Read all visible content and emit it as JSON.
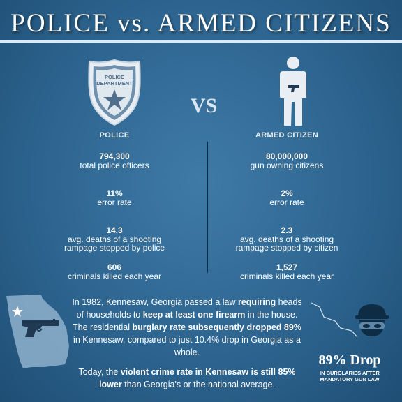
{
  "title": "POLICE vs. ARMED CITIZENS",
  "vs_label": "VS",
  "badge_text": [
    "POLICE",
    "DEPARTMENT"
  ],
  "police": {
    "heading": "POLICE",
    "stats": [
      {
        "value": "794,300",
        "desc": [
          "total police officers"
        ]
      },
      {
        "value": "11%",
        "desc": [
          "error rate"
        ]
      },
      {
        "value": "14.3",
        "desc": [
          "avg. deaths of a shooting",
          "rampage stopped by police"
        ]
      },
      {
        "value": "606",
        "desc": [
          "criminals killed each year"
        ]
      }
    ]
  },
  "citizen": {
    "heading": "ARMED CITIZEN",
    "stats": [
      {
        "value": "80,000,000",
        "desc": [
          "gun owning citizens"
        ]
      },
      {
        "value": "2%",
        "desc": [
          "error rate"
        ]
      },
      {
        "value": "2.3",
        "desc": [
          "avg. deaths of a shooting",
          "rampage stopped by citizen"
        ]
      },
      {
        "value": "1,527",
        "desc": [
          "criminals killed each year"
        ]
      }
    ]
  },
  "kennesaw": {
    "p1": [
      {
        "text": "In 1982, Kennesaw, Georgia passed a law ",
        "bold": false
      },
      {
        "text": "requiring",
        "bold": true
      },
      {
        "text": " heads of households to ",
        "bold": false
      },
      {
        "text": "keep at least one firearm",
        "bold": true
      },
      {
        "text": " in the house. The residential ",
        "bold": false
      },
      {
        "text": "burglary rate subsequently dropped 89%",
        "bold": true
      },
      {
        "text": " in Kennesaw, compared to just 10.4% drop in Georgia as a whole.",
        "bold": false
      }
    ],
    "p2": [
      {
        "text": "Today, the ",
        "bold": false
      },
      {
        "text": "violent crime rate in Kennesaw is still 85% lower",
        "bold": true
      },
      {
        "text": " than Georgia's or the national average.",
        "bold": false
      }
    ]
  },
  "drop": {
    "title": "89% Drop",
    "subtitle": [
      "IN BURGLARIES AFTER",
      "MANDATORY GUN LAW"
    ]
  },
  "icons": {
    "badge": "police-badge-icon",
    "person": "armed-person-icon",
    "map": "georgia-map-icon",
    "pistol": "pistol-icon",
    "robber": "burglar-icon",
    "trend": "drop-trend-line-icon"
  },
  "colors": {
    "background": "#2d6590",
    "accent_light": "#dbe6f0",
    "map_fill": "#8fb2cc",
    "dark_navy": "#0e2c44"
  }
}
